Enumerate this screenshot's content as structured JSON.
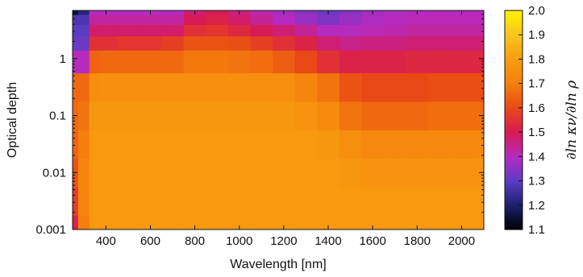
{
  "chart_data": {
    "type": "heatmap",
    "title": "",
    "xlabel": "Wavelength [nm]",
    "ylabel": "Optical depth",
    "colorbar_label": "∂ln κν/∂ln ρ",
    "x_range": [
      250,
      2100
    ],
    "y_range": [
      0.001,
      7
    ],
    "y_scale": "log",
    "x_ticks": [
      400,
      600,
      800,
      1000,
      1200,
      1400,
      1600,
      1800,
      2000
    ],
    "x_tick_labels": [
      "400",
      "600",
      "800",
      "1000",
      "1200",
      "1400",
      "1600",
      "1800",
      "2000"
    ],
    "y_ticks": [
      0.001,
      0.01,
      0.1,
      1
    ],
    "y_tick_labels": [
      "0.001",
      "0.01",
      "0.1",
      "1"
    ],
    "colorbar_range": [
      1.1,
      2.0
    ],
    "colorbar_ticks": [
      1.1,
      1.2,
      1.3,
      1.4,
      1.5,
      1.6,
      1.7,
      1.8,
      1.9,
      2.0
    ],
    "colorbar_tick_labels": [
      "1.1",
      "1.2",
      "1.3",
      "1.4",
      "1.5",
      "1.6",
      "1.7",
      "1.8",
      "1.9",
      "2.0"
    ],
    "colormap": [
      {
        "value": 1.1,
        "color": "#000000"
      },
      {
        "value": 1.2,
        "color": "#1d1f6b"
      },
      {
        "value": 1.3,
        "color": "#5a3cc4"
      },
      {
        "value": 1.4,
        "color": "#b52bc0"
      },
      {
        "value": 1.5,
        "color": "#d81a55"
      },
      {
        "value": 1.6,
        "color": "#e84816"
      },
      {
        "value": 1.7,
        "color": "#f57f0c"
      },
      {
        "value": 1.8,
        "color": "#f89c10"
      },
      {
        "value": 1.9,
        "color": "#f7c41e"
      },
      {
        "value": 2.0,
        "color": "#fff200"
      }
    ],
    "wavelength_columns": [
      250,
      300,
      350,
      400,
      500,
      600,
      700,
      800,
      900,
      1000,
      1100,
      1200,
      1300,
      1400,
      1500,
      1600,
      1700,
      1800,
      1900,
      2000,
      2100
    ],
    "log_depth_rows": [
      -3.0,
      -2.5,
      -2.0,
      -1.5,
      -1.0,
      -0.5,
      0.0,
      0.3,
      0.5,
      0.7,
      0.85
    ],
    "values": [
      [
        1.52,
        1.7,
        1.79,
        1.79,
        1.79,
        1.79,
        1.79,
        1.79,
        1.79,
        1.79,
        1.79,
        1.79,
        1.79,
        1.79,
        1.79,
        1.79,
        1.79,
        1.79,
        1.79,
        1.79,
        1.79
      ],
      [
        1.58,
        1.72,
        1.79,
        1.79,
        1.79,
        1.79,
        1.79,
        1.79,
        1.79,
        1.79,
        1.79,
        1.79,
        1.79,
        1.79,
        1.79,
        1.79,
        1.79,
        1.79,
        1.79,
        1.79,
        1.79
      ],
      [
        1.62,
        1.72,
        1.79,
        1.79,
        1.79,
        1.79,
        1.79,
        1.79,
        1.79,
        1.79,
        1.79,
        1.79,
        1.79,
        1.79,
        1.78,
        1.77,
        1.77,
        1.77,
        1.77,
        1.77,
        1.77
      ],
      [
        1.65,
        1.7,
        1.79,
        1.79,
        1.79,
        1.79,
        1.79,
        1.79,
        1.79,
        1.79,
        1.79,
        1.79,
        1.79,
        1.78,
        1.75,
        1.73,
        1.73,
        1.73,
        1.73,
        1.73,
        1.73
      ],
      [
        1.66,
        1.68,
        1.78,
        1.78,
        1.78,
        1.78,
        1.78,
        1.78,
        1.78,
        1.78,
        1.78,
        1.78,
        1.77,
        1.74,
        1.68,
        1.66,
        1.66,
        1.66,
        1.67,
        1.67,
        1.67
      ],
      [
        1.66,
        1.66,
        1.75,
        1.76,
        1.76,
        1.76,
        1.76,
        1.76,
        1.76,
        1.76,
        1.76,
        1.75,
        1.72,
        1.68,
        1.62,
        1.6,
        1.6,
        1.6,
        1.61,
        1.61,
        1.61
      ],
      [
        1.4,
        1.4,
        1.65,
        1.66,
        1.66,
        1.66,
        1.66,
        1.69,
        1.69,
        1.68,
        1.67,
        1.64,
        1.6,
        1.55,
        1.52,
        1.52,
        1.52,
        1.53,
        1.53,
        1.53,
        1.53
      ],
      [
        1.32,
        1.32,
        1.55,
        1.55,
        1.56,
        1.56,
        1.58,
        1.62,
        1.62,
        1.61,
        1.58,
        1.55,
        1.52,
        1.47,
        1.45,
        1.46,
        1.46,
        1.47,
        1.47,
        1.47,
        1.47
      ],
      [
        1.3,
        1.3,
        1.48,
        1.48,
        1.48,
        1.48,
        1.48,
        1.55,
        1.56,
        1.53,
        1.5,
        1.47,
        1.44,
        1.4,
        1.4,
        1.41,
        1.42,
        1.43,
        1.43,
        1.43,
        1.43
      ],
      [
        1.28,
        1.28,
        1.43,
        1.43,
        1.43,
        1.43,
        1.43,
        1.5,
        1.52,
        1.48,
        1.44,
        1.4,
        1.37,
        1.34,
        1.37,
        1.39,
        1.4,
        1.41,
        1.41,
        1.41,
        1.41
      ],
      [
        1.15,
        1.22,
        1.4,
        1.4,
        1.4,
        1.4,
        1.4,
        1.47,
        1.5,
        1.46,
        1.42,
        1.38,
        1.35,
        1.32,
        1.35,
        1.38,
        1.39,
        1.4,
        1.4,
        1.4,
        1.4
      ]
    ]
  }
}
